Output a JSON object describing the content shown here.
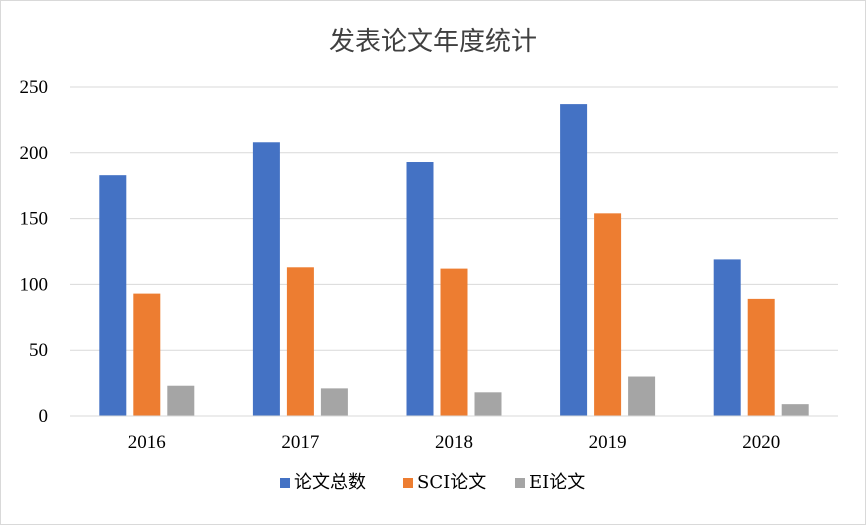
{
  "chart_data": {
    "type": "bar",
    "title": "发表论文年度统计",
    "categories": [
      "2016",
      "2017",
      "2018",
      "2019",
      "2020"
    ],
    "series": [
      {
        "name": "论文总数",
        "values": [
          183,
          208,
          193,
          237,
          119
        ],
        "color": "#4472C4"
      },
      {
        "name": "SCI论文",
        "values": [
          93,
          113,
          112,
          154,
          89
        ],
        "color": "#ED7D31"
      },
      {
        "name": "EI论文",
        "values": [
          23,
          21,
          18,
          30,
          9
        ],
        "color": "#A5A5A5"
      }
    ],
    "ylim": [
      0,
      250
    ],
    "yticks": [
      "0",
      "50",
      "100",
      "150",
      "200",
      "250"
    ],
    "grid": true,
    "legend_position": "bottom"
  }
}
